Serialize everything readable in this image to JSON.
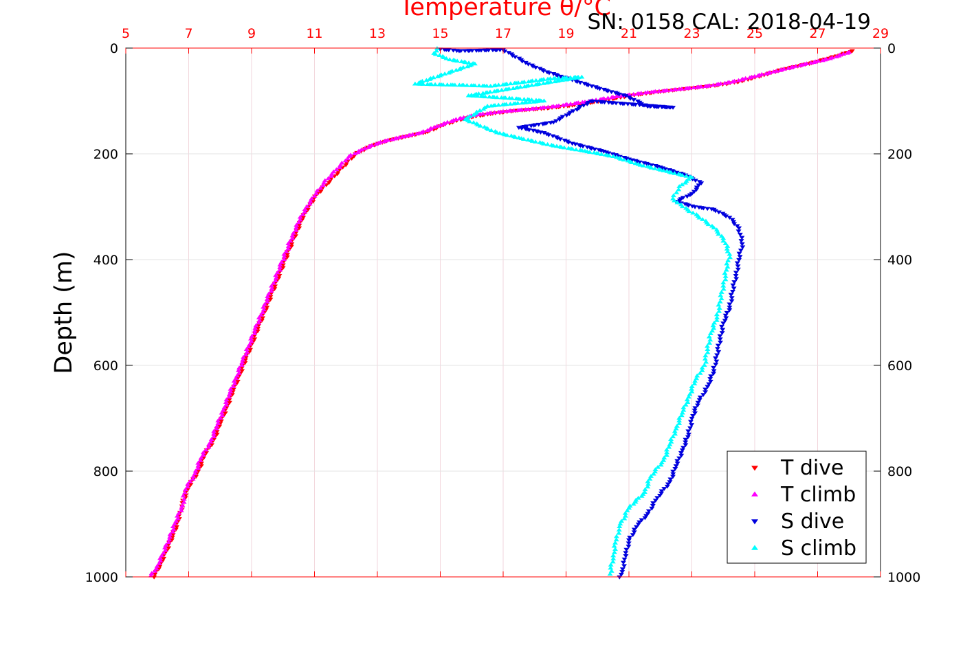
{
  "colors": {
    "t_dive": "#ff0000",
    "t_climb": "#ff00ff",
    "s_dive": "#0000dd",
    "s_climb": "#00ffff",
    "top_axis": "#ff0000",
    "grid": "#e3e3e3"
  },
  "chart_data": {
    "type": "scatter",
    "title": "Temperature θ/°C",
    "annotation": "SN: 0158  CAL: 2018-04-19",
    "ylabel": "Depth (m)",
    "xlim": [
      5,
      29
    ],
    "ylim": [
      0,
      1000
    ],
    "y_reversed": true,
    "grid": true,
    "legend_position": "bottom-right",
    "x_ticks": [
      "5",
      "7",
      "9",
      "11",
      "13",
      "15",
      "17",
      "19",
      "21",
      "23",
      "25",
      "27",
      "29"
    ],
    "y_ticks": [
      "0",
      "200",
      "400",
      "600",
      "800",
      "1000"
    ],
    "series": [
      {
        "name": "T dive",
        "marker": "triangle-down",
        "x": [
          28.1,
          27.6,
          26.8,
          25.9,
          25.2,
          24.6,
          23.8,
          22.9,
          22.0,
          21.0,
          20.1,
          19.2,
          18.3,
          17.4,
          16.6,
          15.8,
          15.1,
          14.6,
          14.0,
          13.3,
          12.8,
          12.3,
          11.9,
          11.5,
          11.1,
          10.8,
          10.6,
          10.4,
          10.2,
          10.0,
          9.8,
          9.6,
          9.4,
          9.2,
          9.0,
          8.8,
          8.6,
          8.4,
          8.2,
          8.0,
          7.8,
          7.5,
          7.3,
          7.0,
          6.8,
          6.7,
          6.5,
          6.3,
          6.1,
          5.9
        ],
        "y": [
          5,
          15,
          28,
          40,
          52,
          62,
          70,
          76,
          82,
          90,
          100,
          108,
          114,
          118,
          124,
          132,
          145,
          158,
          166,
          175,
          185,
          200,
          225,
          250,
          275,
          300,
          325,
          350,
          380,
          410,
          440,
          470,
          500,
          530,
          560,
          590,
          620,
          650,
          680,
          710,
          740,
          770,
          800,
          830,
          860,
          890,
          920,
          950,
          975,
          1000
        ]
      },
      {
        "name": "T climb",
        "marker": "triangle-up",
        "x": [
          28.0,
          27.4,
          26.5,
          25.6,
          24.9,
          24.3,
          23.5,
          22.6,
          21.6,
          20.6,
          19.6,
          18.7,
          17.8,
          17.0,
          16.2,
          15.5,
          14.9,
          14.4,
          13.8,
          13.1,
          12.6,
          12.1,
          11.7,
          11.3,
          11.0,
          10.7,
          10.5,
          10.3,
          10.1,
          9.9,
          9.7,
          9.5,
          9.3,
          9.1,
          8.9,
          8.7,
          8.5,
          8.3,
          8.1,
          7.9,
          7.7,
          7.4,
          7.2,
          6.9,
          6.8,
          6.6,
          6.4,
          6.2,
          6.0,
          5.8
        ],
        "y": [
          8,
          20,
          32,
          45,
          55,
          64,
          72,
          78,
          84,
          92,
          102,
          110,
          116,
          120,
          126,
          135,
          148,
          160,
          168,
          178,
          190,
          205,
          230,
          255,
          280,
          305,
          330,
          355,
          385,
          415,
          445,
          475,
          505,
          535,
          565,
          595,
          625,
          655,
          685,
          715,
          745,
          775,
          805,
          835,
          865,
          895,
          925,
          955,
          980,
          998
        ]
      },
      {
        "name": "S dive",
        "marker": "triangle-down",
        "x": [
          15.0,
          15.6,
          16.3,
          17.0,
          17.8,
          18.4,
          19.2,
          20.0,
          20.9,
          21.6,
          22.4,
          19.8,
          18.6,
          17.5,
          18.3,
          19.2,
          20.2,
          21.0,
          22.0,
          22.8,
          23.3,
          23.0,
          22.5,
          23.1,
          23.7,
          24.2,
          24.5,
          24.6,
          24.5,
          24.4,
          24.3,
          24.2,
          24.0,
          23.9,
          23.8,
          23.7,
          23.5,
          23.2,
          23.0,
          22.9,
          22.7,
          22.5,
          22.3,
          21.9,
          21.6,
          21.3,
          21.0,
          20.9,
          20.8,
          20.7
        ],
        "y": [
          2,
          5,
          4,
          3,
          30,
          45,
          60,
          75,
          90,
          110,
          112,
          100,
          140,
          150,
          160,
          180,
          195,
          210,
          225,
          240,
          255,
          275,
          290,
          300,
          305,
          320,
          340,
          370,
          400,
          430,
          460,
          490,
          520,
          550,
          580,
          610,
          640,
          670,
          700,
          730,
          760,
          790,
          820,
          850,
          880,
          900,
          930,
          960,
          985,
          1000
        ]
      },
      {
        "name": "S climb",
        "marker": "triangle-up",
        "x": [
          14.9,
          14.8,
          15.3,
          16.1,
          14.2,
          15.4,
          16.6,
          17.6,
          18.5,
          19.5,
          15.9,
          17.2,
          18.3,
          16.5,
          15.8,
          16.8,
          17.5,
          18.6,
          19.6,
          20.5,
          21.3,
          22.1,
          23.0,
          22.6,
          22.4,
          22.7,
          23.2,
          23.7,
          24.0,
          24.2,
          24.1,
          24.0,
          23.9,
          23.8,
          23.6,
          23.5,
          23.4,
          23.1,
          22.9,
          22.7,
          22.5,
          22.3,
          22.1,
          21.7,
          21.5,
          21.0,
          20.7,
          20.6,
          20.5,
          20.4
        ],
        "y": [
          1,
          10,
          22,
          30,
          68,
          70,
          72,
          65,
          58,
          55,
          90,
          95,
          100,
          110,
          135,
          160,
          170,
          185,
          195,
          205,
          220,
          232,
          245,
          262,
          285,
          300,
          318,
          340,
          360,
          390,
          420,
          450,
          480,
          510,
          540,
          570,
          600,
          630,
          660,
          690,
          720,
          750,
          780,
          810,
          840,
          870,
          905,
          930,
          960,
          995
        ]
      }
    ]
  }
}
